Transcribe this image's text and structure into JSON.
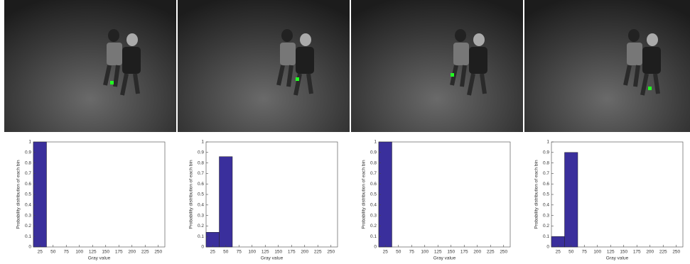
{
  "chart_data": [
    {
      "type": "histogram",
      "x_label": "Gray value",
      "y_label": "Probability distribution of each bin",
      "color": "#3a2f9c",
      "bins": [
        12.5,
        37.5
      ],
      "values": [
        1
      ],
      "xlim": [
        12.5,
        262.5
      ],
      "xticks": [
        25,
        50,
        75,
        100,
        125,
        150,
        175,
        200,
        225,
        250
      ],
      "ylim": [
        0,
        1
      ],
      "yticks": [
        0,
        0.1,
        0.2,
        0.3,
        0.4,
        0.5,
        0.6,
        0.7,
        0.8,
        0.9,
        1
      ]
    },
    {
      "type": "histogram",
      "x_label": "Gray value",
      "y_label": "Probability distribution of each bin",
      "color": "#3a2f9c",
      "bins": [
        12.5,
        37.5,
        62.5
      ],
      "values": [
        0.14,
        0.86
      ],
      "xlim": [
        12.5,
        262.5
      ],
      "xticks": [
        25,
        50,
        75,
        100,
        125,
        150,
        175,
        200,
        225,
        250
      ],
      "ylim": [
        0,
        1
      ],
      "yticks": [
        0,
        0.1,
        0.2,
        0.3,
        0.4,
        0.5,
        0.6,
        0.7,
        0.8,
        0.9,
        1
      ]
    },
    {
      "type": "histogram",
      "x_label": "Gray value",
      "y_label": "Probability distribution of each bin",
      "color": "#3a2f9c",
      "bins": [
        12.5,
        37.5
      ],
      "values": [
        1
      ],
      "xlim": [
        12.5,
        262.5
      ],
      "xticks": [
        25,
        50,
        75,
        100,
        125,
        150,
        175,
        200,
        225,
        250
      ],
      "ylim": [
        0,
        1
      ],
      "yticks": [
        0,
        0.1,
        0.2,
        0.3,
        0.4,
        0.5,
        0.6,
        0.7,
        0.8,
        0.9,
        1
      ]
    },
    {
      "type": "histogram",
      "x_label": "Gray value",
      "y_label": "Probability distribution of each bin",
      "color": "#3a2f9c",
      "bins": [
        12.5,
        37.5,
        62.5
      ],
      "values": [
        0.1,
        0.9
      ],
      "xlim": [
        12.5,
        262.5
      ],
      "xticks": [
        25,
        50,
        75,
        100,
        125,
        150,
        175,
        200,
        225,
        250
      ],
      "ylim": [
        0,
        1
      ],
      "yticks": [
        0,
        0.1,
        0.2,
        0.3,
        0.4,
        0.5,
        0.6,
        0.7,
        0.8,
        0.9,
        1
      ]
    }
  ]
}
